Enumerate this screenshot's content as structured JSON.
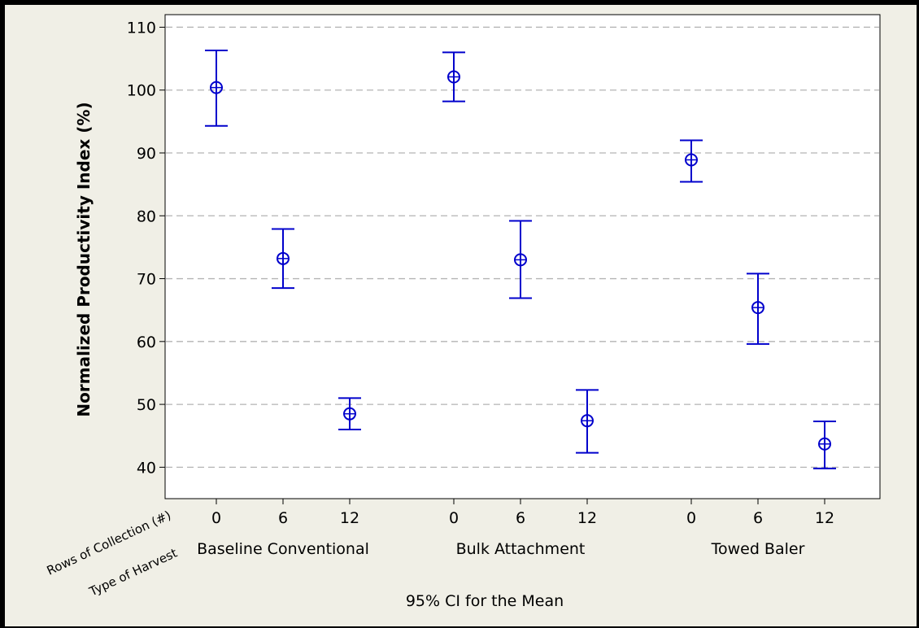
{
  "chart_data": {
    "type": "scatter",
    "subtype": "interval-plot",
    "caption": "95% CI for the Mean",
    "ylabel": "Normalized Productivity Index (%)",
    "ylim": [
      35,
      112
    ],
    "yticks": [
      40,
      50,
      60,
      70,
      80,
      90,
      100,
      110
    ],
    "grid": "horizontal dashed",
    "row_labels": [
      "Rows of Collection (#)",
      "Type of Harvest"
    ],
    "groups": [
      "Baseline Conventional",
      "Bulk Attachment",
      "Towed Baler"
    ],
    "levels": [
      "0",
      "6",
      "12"
    ],
    "points": [
      {
        "group": "Baseline Conventional",
        "rows": "0",
        "mean": 100.4,
        "lower": 94.3,
        "upper": 106.3
      },
      {
        "group": "Baseline Conventional",
        "rows": "6",
        "mean": 73.2,
        "lower": 68.5,
        "upper": 77.9
      },
      {
        "group": "Baseline Conventional",
        "rows": "12",
        "mean": 48.5,
        "lower": 46.0,
        "upper": 51.0
      },
      {
        "group": "Bulk Attachment",
        "rows": "0",
        "mean": 102.1,
        "lower": 98.2,
        "upper": 106.0
      },
      {
        "group": "Bulk Attachment",
        "rows": "6",
        "mean": 73.0,
        "lower": 66.9,
        "upper": 79.2
      },
      {
        "group": "Bulk Attachment",
        "rows": "12",
        "mean": 47.4,
        "lower": 42.3,
        "upper": 52.3
      },
      {
        "group": "Towed Baler",
        "rows": "0",
        "mean": 88.9,
        "lower": 85.4,
        "upper": 92.0
      },
      {
        "group": "Towed Baler",
        "rows": "6",
        "mean": 65.4,
        "lower": 59.6,
        "upper": 70.8
      },
      {
        "group": "Towed Baler",
        "rows": "12",
        "mean": 43.7,
        "lower": 39.8,
        "upper": 47.3
      }
    ],
    "colors": {
      "series": "#0000cc",
      "grid": "#b4b4b4",
      "plot_bg": "#ffffff",
      "outer_bg": "#f0efe6"
    }
  }
}
